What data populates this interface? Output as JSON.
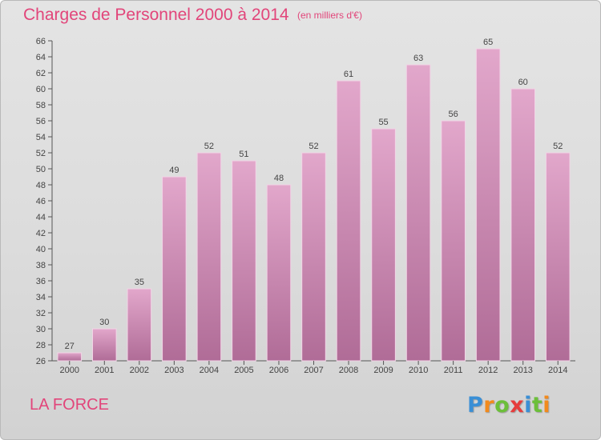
{
  "title": "Charges de Personnel 2000 à 2014",
  "subtitle": "(en milliers d'€)",
  "location": "LA FORCE",
  "logo": {
    "letters": [
      "P",
      "r",
      "o",
      "x",
      "i",
      "t",
      "i"
    ],
    "colors": [
      "#3a8fd6",
      "#f28a1c",
      "#6cbf3a",
      "#e63c3c",
      "#3a8fd6",
      "#6cbf3a",
      "#f28a1c"
    ]
  },
  "colors": {
    "bar_top": "#e2a7cb",
    "bar_bottom": "#b06c97",
    "axis": "#555555",
    "grid": "#d0d0d0"
  },
  "chart_data": {
    "type": "bar",
    "categories": [
      "2000",
      "2001",
      "2002",
      "2003",
      "2004",
      "2005",
      "2006",
      "2007",
      "2008",
      "2009",
      "2010",
      "2011",
      "2012",
      "2013",
      "2014"
    ],
    "values": [
      27,
      30,
      35,
      49,
      52,
      51,
      48,
      52,
      61,
      55,
      63,
      56,
      65,
      60,
      52
    ],
    "title": "Charges de Personnel 2000 à 2014",
    "subtitle": "(en milliers d'€)",
    "xlabel": "",
    "ylabel": "",
    "ylim": [
      26,
      66
    ],
    "yticks": [
      26,
      28,
      30,
      32,
      34,
      36,
      38,
      40,
      42,
      44,
      46,
      48,
      50,
      52,
      54,
      56,
      58,
      60,
      62,
      64,
      66
    ],
    "grid": false,
    "legend": "none"
  }
}
